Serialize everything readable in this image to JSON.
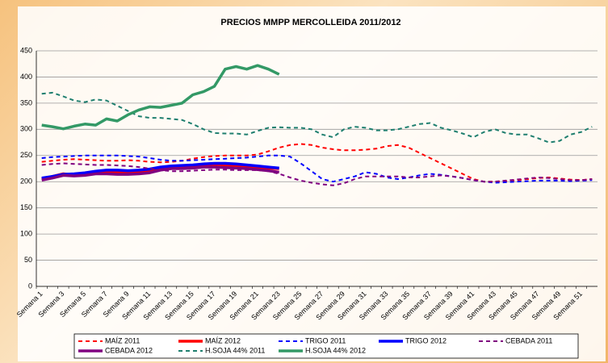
{
  "chart_data": {
    "type": "line",
    "title": "PRECIOS MMPP MERCOLLEIDA  2011/2012",
    "categories": [
      "Semana 1",
      null,
      "Semana 3",
      null,
      "Semana 5",
      null,
      "Semana 7",
      null,
      "Semana 9",
      null,
      "Semana 11",
      null,
      "Semana 13",
      null,
      "Semana 15",
      null,
      "Semana 17",
      null,
      "Semana 19",
      null,
      "Semana 21",
      null,
      "Semana 23",
      null,
      "Semana 25",
      null,
      "Semana 27",
      null,
      "Semana 29",
      null,
      "Semana 31",
      null,
      "Semana 33",
      null,
      "Semana 35",
      null,
      "Semana 37",
      null,
      "Semana 39",
      null,
      "Semana 41",
      null,
      "Semana 43",
      null,
      "Semana 45",
      null,
      "Semana 47",
      null,
      "Semana 49",
      null,
      "Semana 51",
      null
    ],
    "ylim": [
      0,
      450
    ],
    "yticks": [
      0,
      50,
      100,
      150,
      200,
      250,
      300,
      350,
      400,
      450
    ],
    "grid": true,
    "legend": "bottom",
    "series": [
      {
        "name": "MAÍZ 2011",
        "color": "#ff0000",
        "style": "dashed",
        "values": [
          238,
          240,
          242,
          243,
          242,
          241,
          240,
          240,
          241,
          240,
          238,
          237,
          238,
          240,
          244,
          247,
          249,
          250,
          250,
          250,
          252,
          258,
          265,
          270,
          272,
          270,
          265,
          262,
          260,
          260,
          261,
          263,
          268,
          270,
          265,
          255,
          245,
          235,
          225,
          215,
          205,
          200,
          200,
          201,
          203,
          205,
          207,
          208,
          206,
          204,
          203,
          205
        ]
      },
      {
        "name": "MAÍZ 2012",
        "color": "#ff0000",
        "style": "solid",
        "values": [
          205,
          210,
          215,
          213,
          215,
          218,
          218,
          218,
          217,
          218,
          220,
          225,
          228,
          228,
          230,
          232,
          233,
          232,
          230,
          230,
          228,
          226,
          225,
          null,
          null,
          null,
          null,
          null,
          null,
          null,
          null,
          null,
          null,
          null,
          null,
          null,
          null,
          null,
          null,
          null,
          null,
          null,
          null,
          null,
          null,
          null,
          null,
          null,
          null,
          null,
          null,
          null
        ]
      },
      {
        "name": "TRIGO 2011",
        "color": "#0000ff",
        "style": "dashed",
        "values": [
          245,
          247,
          248,
          249,
          250,
          250,
          250,
          250,
          249,
          248,
          245,
          242,
          240,
          240,
          241,
          242,
          243,
          244,
          245,
          246,
          248,
          250,
          250,
          248,
          235,
          220,
          205,
          200,
          205,
          210,
          218,
          215,
          208,
          205,
          208,
          212,
          215,
          213,
          210,
          207,
          203,
          200,
          198,
          199,
          200,
          201,
          202,
          202,
          202,
          201,
          202,
          203
        ]
      },
      {
        "name": "TRIGO 2012",
        "color": "#0000ff",
        "style": "solid",
        "values": [
          207,
          210,
          214,
          215,
          217,
          220,
          222,
          222,
          221,
          222,
          224,
          228,
          230,
          231,
          232,
          234,
          235,
          235,
          234,
          232,
          230,
          228,
          226,
          null,
          null,
          null,
          null,
          null,
          null,
          null,
          null,
          null,
          null,
          null,
          null,
          null,
          null,
          null,
          null,
          null,
          null,
          null,
          null,
          null,
          null,
          null,
          null,
          null,
          null,
          null,
          null,
          null
        ]
      },
      {
        "name": "CEBADA 2011",
        "color": "#800080",
        "style": "dashed",
        "values": [
          232,
          234,
          235,
          234,
          233,
          232,
          232,
          231,
          230,
          228,
          225,
          222,
          220,
          220,
          221,
          222,
          223,
          223,
          222,
          222,
          222,
          220,
          215,
          208,
          202,
          198,
          195,
          193,
          197,
          205,
          210,
          210,
          210,
          210,
          208,
          208,
          210,
          212,
          210,
          207,
          203,
          200,
          200,
          202,
          204,
          206,
          208,
          207,
          205,
          203,
          203,
          205
        ]
      },
      {
        "name": "CEBADA 2012",
        "color": "#800080",
        "style": "solid",
        "values": [
          203,
          207,
          212,
          211,
          212,
          215,
          215,
          214,
          214,
          215,
          217,
          222,
          225,
          225,
          226,
          228,
          228,
          227,
          226,
          225,
          223,
          221,
          218,
          null,
          null,
          null,
          null,
          null,
          null,
          null,
          null,
          null,
          null,
          null,
          null,
          null,
          null,
          null,
          null,
          null,
          null,
          null,
          null,
          null,
          null,
          null,
          null,
          null,
          null,
          null,
          null,
          null
        ]
      },
      {
        "name": "H.SOJA 44% 2011",
        "color": "#1f7f6f",
        "style": "dashed",
        "values": [
          368,
          370,
          363,
          355,
          352,
          357,
          355,
          345,
          335,
          325,
          322,
          322,
          320,
          318,
          310,
          300,
          293,
          292,
          292,
          290,
          297,
          303,
          304,
          303,
          303,
          300,
          290,
          285,
          300,
          305,
          303,
          298,
          298,
          300,
          305,
          310,
          312,
          303,
          298,
          292,
          285,
          295,
          300,
          293,
          290,
          290,
          283,
          275,
          278,
          290,
          295,
          305
        ]
      },
      {
        "name": "H.SOJA 44% 2012",
        "color": "#339966",
        "style": "solid",
        "values": [
          308,
          305,
          301,
          306,
          310,
          308,
          320,
          316,
          328,
          337,
          343,
          342,
          346,
          350,
          366,
          372,
          382,
          415,
          420,
          415,
          422,
          415,
          405,
          null,
          null,
          null,
          null,
          null,
          null,
          null,
          null,
          null,
          null,
          null,
          null,
          null,
          null,
          null,
          null,
          null,
          null,
          null,
          null,
          null,
          null,
          null,
          null,
          null,
          null,
          null,
          null,
          null
        ]
      }
    ]
  }
}
